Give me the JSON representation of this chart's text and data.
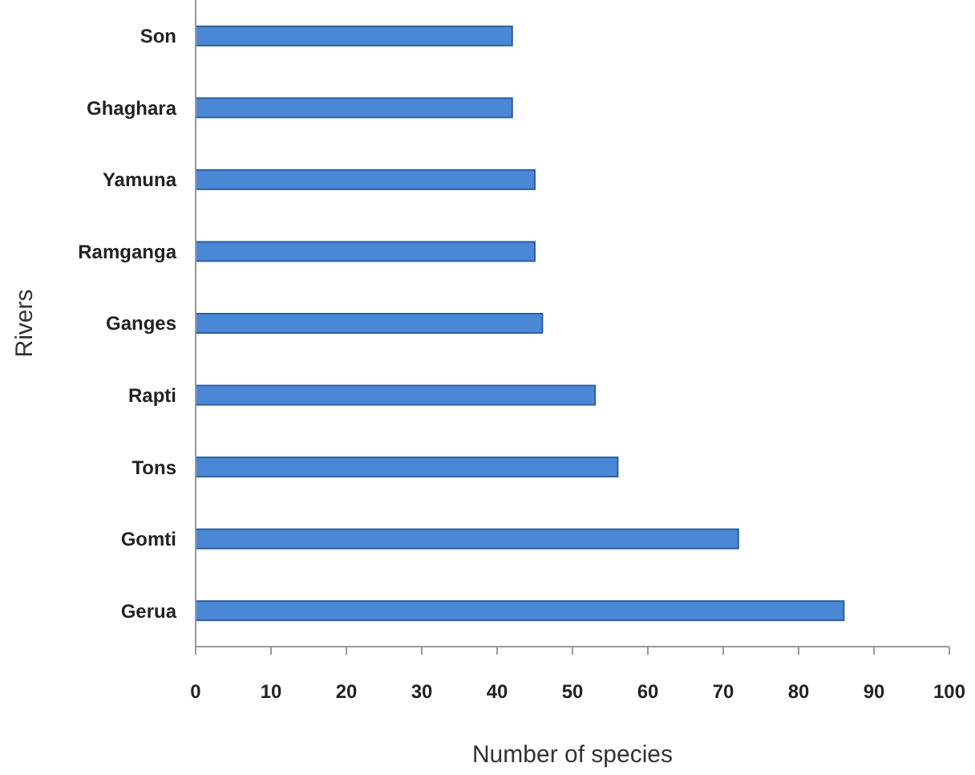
{
  "chart_data": {
    "type": "bar",
    "orientation": "horizontal",
    "xlabel": "Number of species",
    "ylabel": "Rivers",
    "categories": [
      "Son",
      "Ghaghara",
      "Yamuna",
      "Ramganga",
      "Ganges",
      "Rapti",
      "Tons",
      "Gomti",
      "Gerua"
    ],
    "values": [
      42,
      42,
      45,
      45,
      46,
      53,
      56,
      72,
      86
    ],
    "color": "#4a88d6",
    "xlim": [
      0,
      100
    ],
    "xticks": [
      0,
      10,
      20,
      30,
      40,
      50,
      60,
      70,
      80,
      90,
      100
    ],
    "grid": false
  }
}
